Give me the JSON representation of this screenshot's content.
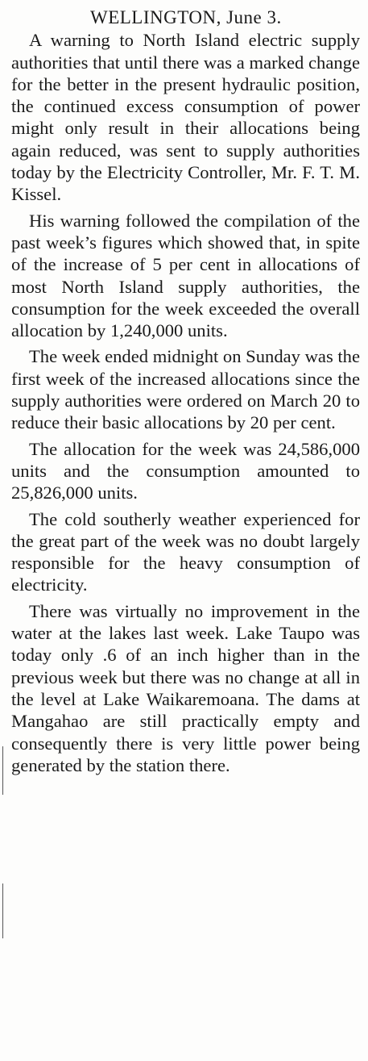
{
  "article": {
    "dateline": "WELLINGTON, June 3.",
    "paragraphs": [
      "A warning to North Island electric supply authorities that until there was a marked change for the better in the present hydraulic position, the continued excess consumption of power might only result in their allocations being again reduced, was sent to supply authorities today by the Electricity Controller, Mr. F. T. M. Kissel.",
      "His warning followed the compilation of the past week’s figures which showed that, in spite of the increase of 5 per cent in allocations of most North Island supply authorities, the consumption for the week exceeded the overall allocation by 1,240,000 units.",
      "The week ended midnight on Sunday was the first week of the increased allocations since the supply authorities were ordered on March 20 to reduce their basic allocations by 20 per cent.",
      "The allocation for the week was 24,586,000 units and the consumption amounted to 25,826,000 units.",
      "The cold southerly weather experienced for the great part of the week was no doubt largely responsible for the heavy consumption of electricity.",
      "There was virtually no improvement in the water at the lakes last week. Lake Taupo was today only .6 of an inch higher than in the previous week but there was no change at all in the level at Lake Waikaremoana. The dams at Mangahao are still practically empty and consequently there is very little power being generated by the station there."
    ]
  }
}
